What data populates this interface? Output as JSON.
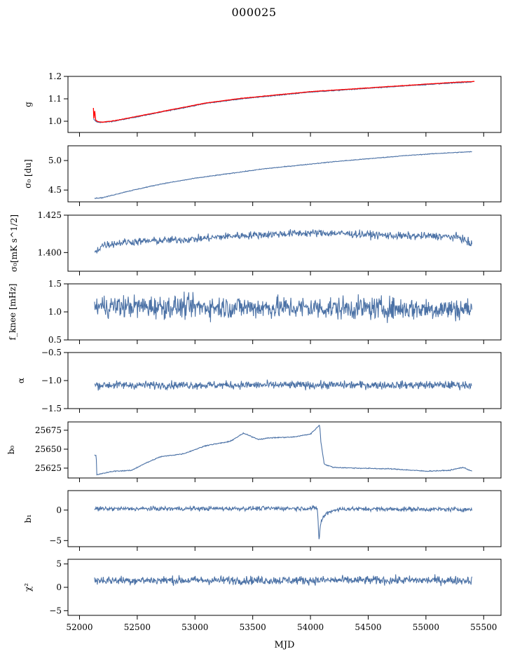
{
  "figure": {
    "title": "000025",
    "xlabel": "MJD"
  },
  "colors": {
    "series": "#4c72a6",
    "fit": "#ff0000",
    "axes": "#000000",
    "background": "#ffffff"
  },
  "chart_data": [
    {
      "type": "line",
      "id": "g",
      "ylabel": "g",
      "xlim": [
        51900,
        55650
      ],
      "ylim": [
        0.95,
        1.2
      ],
      "yticks": [
        1.0,
        1.1,
        1.2
      ],
      "ytick_labels": [
        "1.0",
        "1.1",
        "1.2"
      ],
      "series": [
        {
          "kind": "data",
          "x": [
            52120,
            52140,
            52160,
            52200,
            52300,
            52500,
            52800,
            53100,
            53400,
            53700,
            54000,
            54300,
            54600,
            54900,
            55200,
            55400
          ],
          "y": [
            1.01,
            1.0,
            0.995,
            0.995,
            1.0,
            1.02,
            1.05,
            1.08,
            1.1,
            1.115,
            1.13,
            1.14,
            1.15,
            1.16,
            1.17,
            1.175
          ],
          "noise": 0.002
        },
        {
          "kind": "fit",
          "x": [
            52120,
            52125,
            52130,
            52140,
            52160,
            52200,
            52300,
            52500,
            52800,
            53100,
            53400,
            53700,
            54000,
            54300,
            54600,
            54900,
            55200,
            55420
          ],
          "y": [
            1.06,
            1.0,
            1.055,
            1.005,
            0.998,
            0.996,
            1.002,
            1.022,
            1.052,
            1.082,
            1.102,
            1.117,
            1.132,
            1.142,
            1.152,
            1.162,
            1.172,
            1.178
          ],
          "noise": 0.001
        }
      ]
    },
    {
      "type": "line",
      "id": "sigma0",
      "ylabel": "σ₀ [du]",
      "xlim": [
        51900,
        55650
      ],
      "ylim": [
        4.3,
        5.25
      ],
      "yticks": [
        4.5,
        5.0
      ],
      "ytick_labels": [
        "4.5",
        "5.0"
      ],
      "series": [
        {
          "kind": "data",
          "x": [
            52130,
            52200,
            52400,
            52700,
            53000,
            53300,
            53600,
            53900,
            54200,
            54500,
            54800,
            55100,
            55400
          ],
          "y": [
            4.36,
            4.37,
            4.47,
            4.6,
            4.7,
            4.78,
            4.86,
            4.92,
            4.98,
            5.03,
            5.08,
            5.12,
            5.15
          ],
          "noise": 0.006
        }
      ]
    },
    {
      "type": "line",
      "id": "sigma0-phys",
      "ylabel": "σ₀[mK s^1/2]",
      "xlim": [
        51900,
        55650
      ],
      "ylim": [
        1.3875,
        1.425
      ],
      "yticks": [
        1.4,
        1.425
      ],
      "ytick_labels": [
        "1.400",
        "1.425"
      ],
      "series": [
        {
          "kind": "data",
          "x": [
            52130,
            52200,
            52400,
            52700,
            53000,
            53300,
            53600,
            53900,
            54200,
            54500,
            54800,
            55100,
            55300,
            55400
          ],
          "y": [
            1.4,
            1.405,
            1.407,
            1.408,
            1.409,
            1.411,
            1.412,
            1.413,
            1.413,
            1.412,
            1.411,
            1.411,
            1.41,
            1.405
          ],
          "noise": 0.0025
        }
      ]
    },
    {
      "type": "line",
      "id": "fknee",
      "ylabel": "f_knee [mHz]",
      "xlim": [
        51900,
        55650
      ],
      "ylim": [
        0.5,
        1.5
      ],
      "yticks": [
        0.5,
        1.0,
        1.5
      ],
      "ytick_labels": [
        "0.5",
        "1.0",
        "1.5"
      ],
      "series": [
        {
          "kind": "data",
          "x": [
            52130,
            55400
          ],
          "y": [
            1.1,
            1.05
          ],
          "noise": 0.2
        }
      ]
    },
    {
      "type": "line",
      "id": "alpha",
      "ylabel": "α",
      "xlim": [
        51900,
        55650
      ],
      "ylim": [
        -1.5,
        -0.5
      ],
      "yticks": [
        -1.5,
        -1.0,
        -0.5
      ],
      "ytick_labels": [
        "−1.5",
        "−1.0",
        "−0.5"
      ],
      "series": [
        {
          "kind": "data",
          "x": [
            52130,
            55400
          ],
          "y": [
            -1.08,
            -1.08
          ],
          "noise": 0.07
        }
      ]
    },
    {
      "type": "line",
      "id": "b0",
      "ylabel": "b₀",
      "xlim": [
        51900,
        55650
      ],
      "ylim": [
        25612,
        25686
      ],
      "yticks": [
        25625,
        25650,
        25675
      ],
      "ytick_labels": [
        "25625",
        "25650",
        "25675"
      ],
      "series": [
        {
          "kind": "data",
          "x": [
            52130,
            52145,
            52150,
            52200,
            52300,
            52450,
            52550,
            52700,
            52900,
            53100,
            53300,
            53420,
            53550,
            53650,
            53850,
            54000,
            54080,
            54090,
            54120,
            54200,
            54400,
            54700,
            55000,
            55200,
            55320,
            55400
          ],
          "y": [
            25643,
            25641,
            25616,
            25618,
            25621,
            25622,
            25630,
            25640,
            25644,
            25655,
            25660,
            25671,
            25663,
            25665,
            25666,
            25670,
            25682,
            25660,
            25630,
            25626,
            25625,
            25624,
            25621,
            25622,
            25626,
            25621
          ],
          "noise": 0.6
        }
      ]
    },
    {
      "type": "line",
      "id": "b1",
      "ylabel": "b₁",
      "xlim": [
        51900,
        55650
      ],
      "ylim": [
        -6,
        3.2
      ],
      "yticks": [
        -5,
        0
      ],
      "ytick_labels": [
        "−5",
        "0"
      ],
      "series": [
        {
          "kind": "data",
          "x": [
            52130,
            54060,
            54075,
            54085,
            54100,
            54140,
            54200,
            54300,
            55400
          ],
          "y": [
            0.2,
            0.3,
            -5.2,
            -2.5,
            -1.5,
            -0.5,
            0,
            0.2,
            0.1
          ],
          "noise": 0.35
        }
      ]
    },
    {
      "type": "line",
      "id": "chi2",
      "ylabel": "χ²",
      "xlim": [
        51900,
        55650
      ],
      "ylim": [
        -6,
        6
      ],
      "yticks": [
        -5,
        0,
        5
      ],
      "ytick_labels": [
        "−5",
        "0",
        "5"
      ],
      "xticks": [
        52000,
        52500,
        53000,
        53500,
        54000,
        54500,
        55000,
        55500
      ],
      "xtick_labels": [
        "52000",
        "52500",
        "53000",
        "53500",
        "54000",
        "54500",
        "55000",
        "55500"
      ],
      "series": [
        {
          "kind": "data",
          "x": [
            52130,
            55400
          ],
          "y": [
            1.5,
            1.5
          ],
          "noise": 0.9
        }
      ]
    }
  ]
}
